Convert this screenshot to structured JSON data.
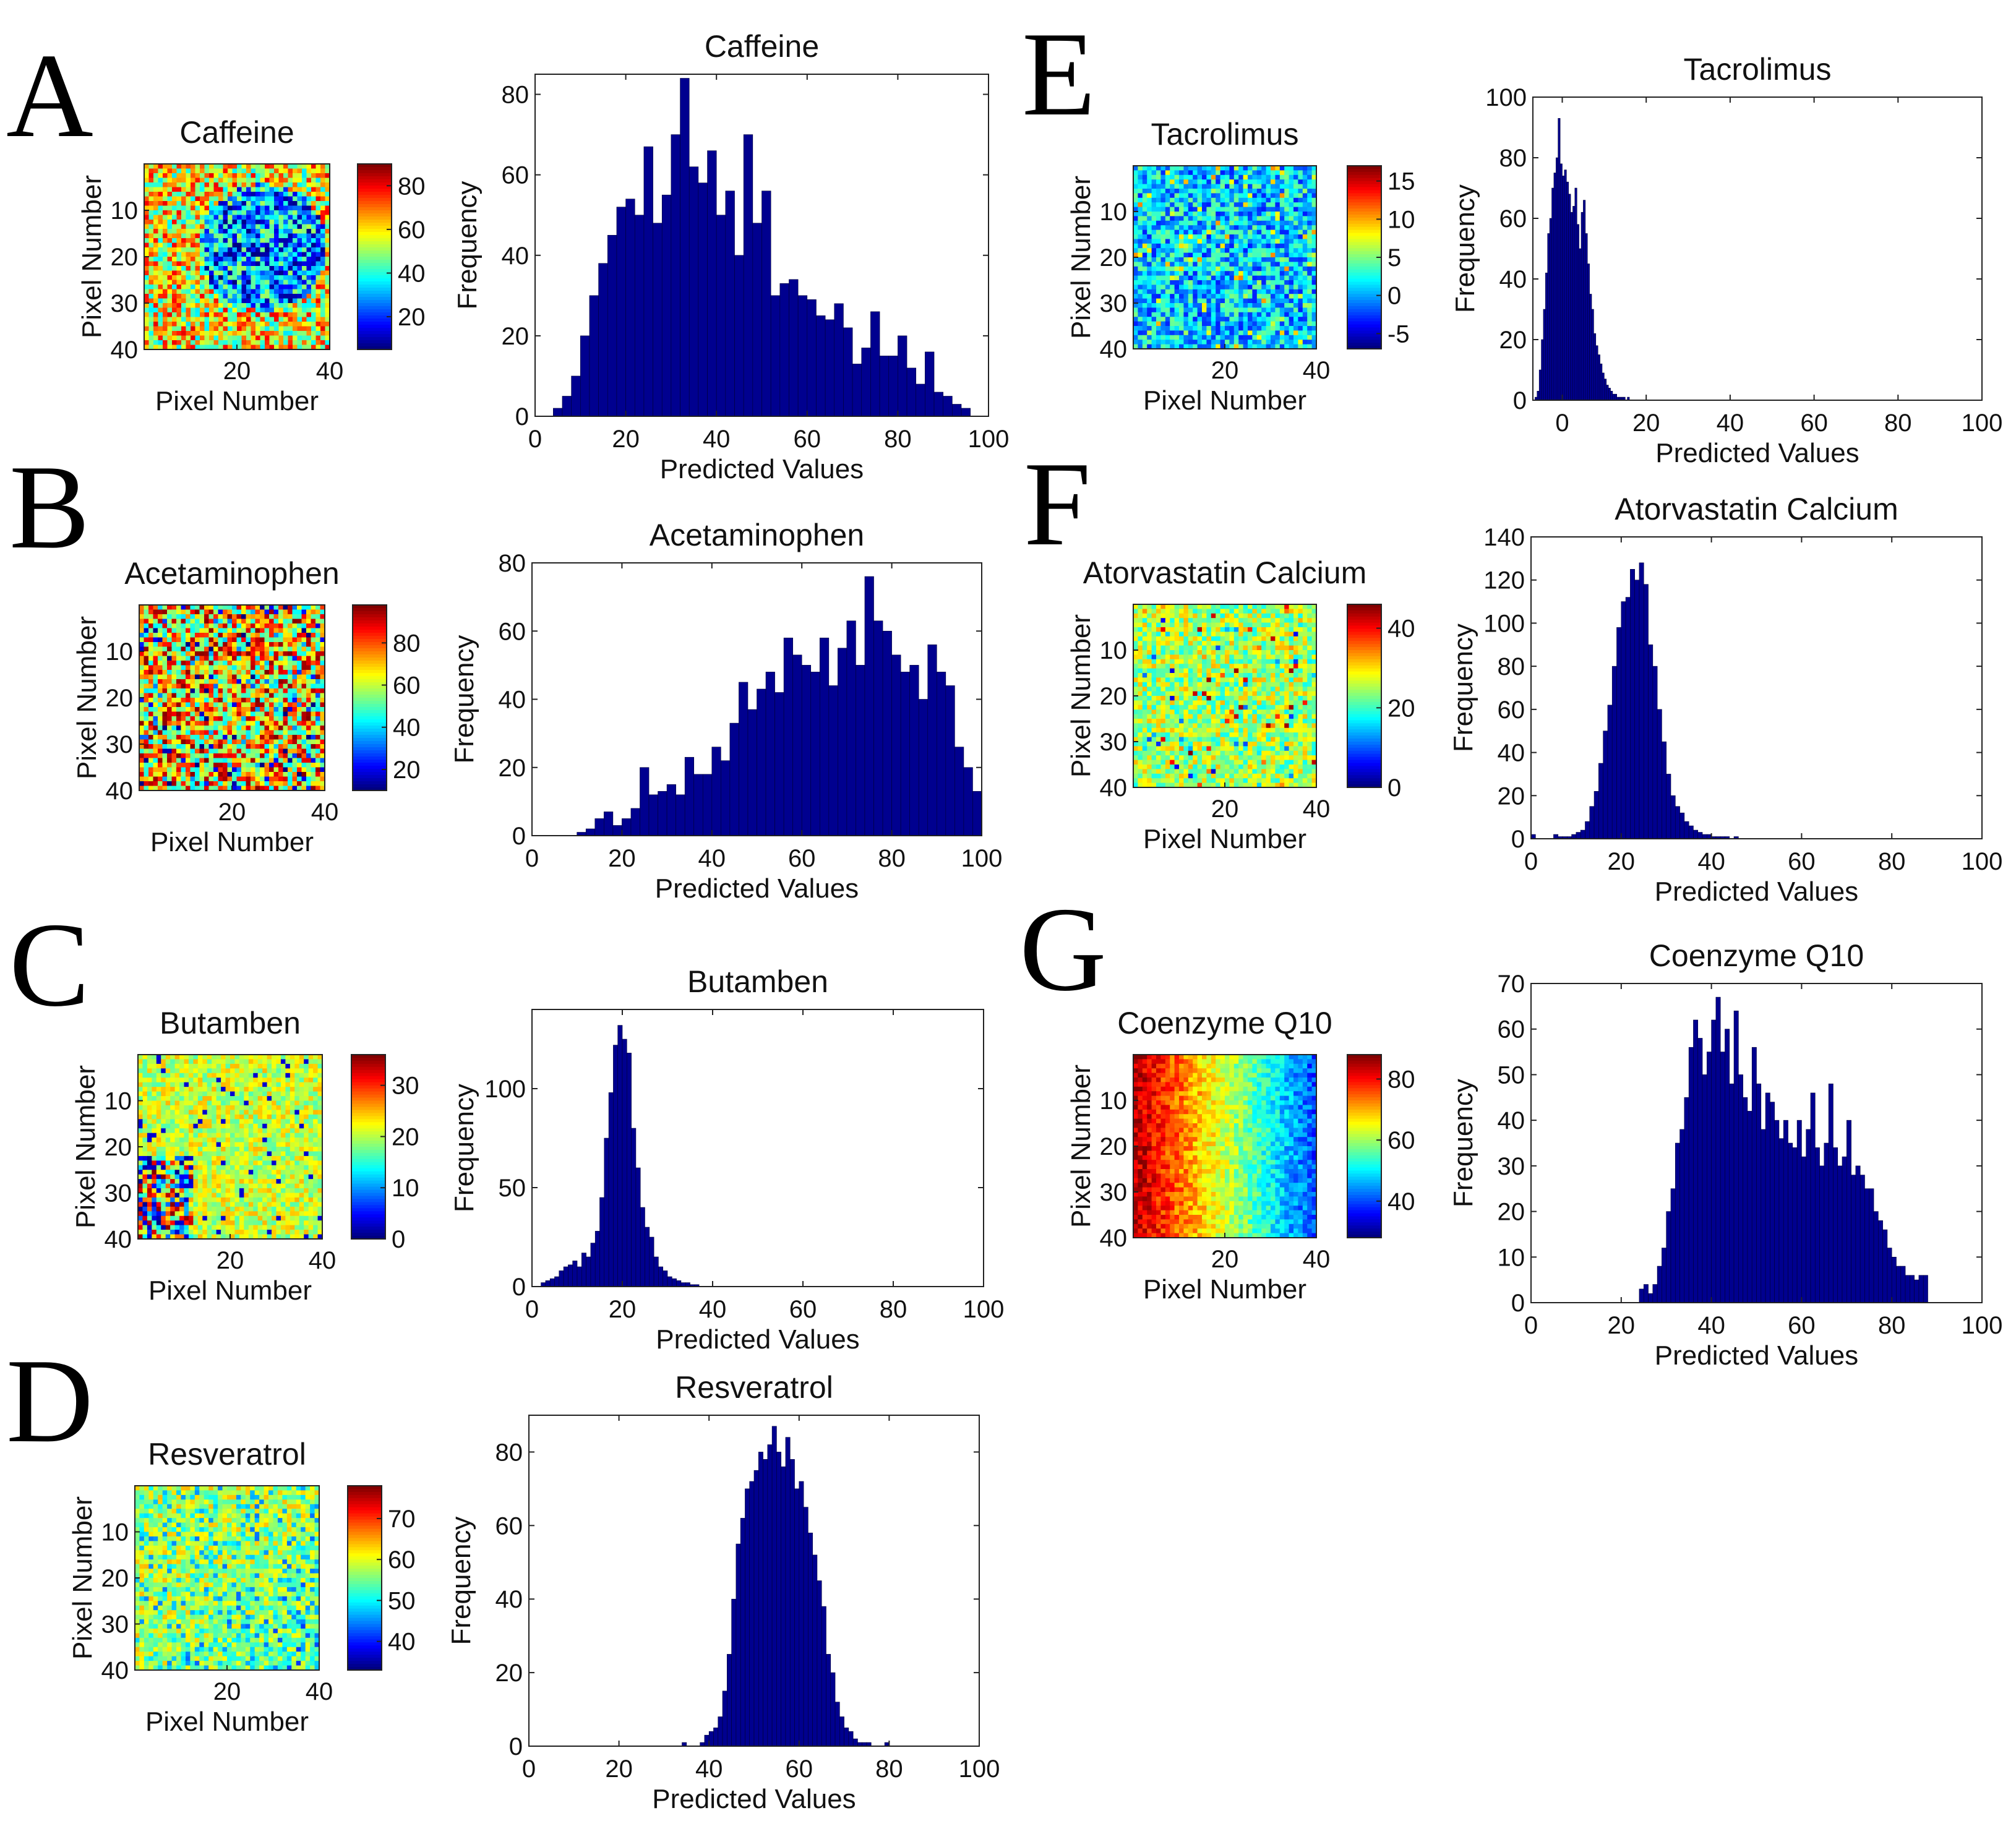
{
  "figure": {
    "panels": [
      {
        "letter": "A",
        "heatmap_title": "Caffeine",
        "hist_title": "Caffeine"
      },
      {
        "letter": "B",
        "heatmap_title": "Acetaminophen",
        "hist_title": "Acetaminophen"
      },
      {
        "letter": "C",
        "heatmap_title": "Butamben",
        "hist_title": "Butamben"
      },
      {
        "letter": "D",
        "heatmap_title": "Resveratrol",
        "hist_title": "Resveratrol"
      },
      {
        "letter": "E",
        "heatmap_title": "Tacrolimus",
        "hist_title": "Tacrolimus"
      },
      {
        "letter": "F",
        "heatmap_title": "Atorvastatin Calcium",
        "hist_title": "Atorvastatin Calcium"
      },
      {
        "letter": "G",
        "heatmap_title": "Coenzyme Q10",
        "hist_title": "Coenzyme Q10"
      }
    ]
  },
  "chart_data": [
    {
      "type": "heatmap",
      "panel": "A",
      "title": "Caffeine",
      "xlabel": "Pixel Number",
      "ylabel": "Pixel Number",
      "grid_size": 40,
      "xticks": [
        20,
        40
      ],
      "yticks": [
        10,
        20,
        30,
        40
      ],
      "colorbar": {
        "ticks": [
          20,
          40,
          60,
          80
        ],
        "range": [
          5,
          90
        ],
        "colormap": "jet"
      },
      "pattern": "random mix, lower values concentrated in right-center region"
    },
    {
      "type": "bar",
      "panel": "A",
      "title": "Caffeine",
      "xlabel": "Predicted Values",
      "ylabel": "Frequency",
      "xlim": [
        0,
        100
      ],
      "ylim": [
        0,
        85
      ],
      "xticks": [
        0,
        20,
        40,
        60,
        80,
        100
      ],
      "yticks": [
        0,
        20,
        40,
        60,
        80
      ],
      "bin_width": 2,
      "categories": [
        1,
        3,
        5,
        7,
        9,
        11,
        13,
        15,
        17,
        19,
        21,
        23,
        25,
        27,
        29,
        31,
        33,
        35,
        37,
        39,
        41,
        43,
        45,
        47,
        49,
        51,
        53,
        55,
        57,
        59,
        61,
        63,
        65,
        67,
        69,
        71,
        73,
        75,
        77,
        79,
        81,
        83,
        85,
        87,
        89,
        91,
        93,
        95,
        97,
        99
      ],
      "values": [
        0,
        0,
        2,
        5,
        10,
        20,
        30,
        38,
        45,
        52,
        54,
        50,
        67,
        48,
        55,
        70,
        84,
        62,
        58,
        66,
        50,
        56,
        40,
        70,
        48,
        56,
        30,
        33,
        34,
        30,
        29,
        25,
        24,
        28,
        22,
        13,
        17,
        26,
        15,
        15,
        20,
        12,
        8,
        16,
        6,
        5,
        3,
        2,
        0,
        0
      ]
    },
    {
      "type": "heatmap",
      "panel": "B",
      "title": "Acetaminophen",
      "xlabel": "Pixel Number",
      "ylabel": "Pixel Number",
      "grid_size": 40,
      "xticks": [
        20,
        40
      ],
      "yticks": [
        10,
        20,
        30,
        40
      ],
      "colorbar": {
        "ticks": [
          20,
          40,
          60,
          80
        ],
        "range": [
          10,
          98
        ],
        "colormap": "jet"
      },
      "pattern": "random mix dominated by high values"
    },
    {
      "type": "bar",
      "panel": "B",
      "title": "Acetaminophen",
      "xlabel": "Predicted Values",
      "ylabel": "Frequency",
      "xlim": [
        0,
        100
      ],
      "ylim": [
        0,
        80
      ],
      "xticks": [
        0,
        20,
        40,
        60,
        80,
        100
      ],
      "yticks": [
        0,
        20,
        40,
        60,
        80
      ],
      "bin_width": 2,
      "categories": [
        1,
        3,
        5,
        7,
        9,
        11,
        13,
        15,
        17,
        19,
        21,
        23,
        25,
        27,
        29,
        31,
        33,
        35,
        37,
        39,
        41,
        43,
        45,
        47,
        49,
        51,
        53,
        55,
        57,
        59,
        61,
        63,
        65,
        67,
        69,
        71,
        73,
        75,
        77,
        79,
        81,
        83,
        85,
        87,
        89,
        91,
        93,
        95,
        97,
        99
      ],
      "values": [
        0,
        0,
        0,
        0,
        0,
        1,
        2,
        5,
        7,
        3,
        5,
        8,
        20,
        12,
        13,
        15,
        12,
        23,
        18,
        18,
        26,
        22,
        33,
        45,
        37,
        43,
        48,
        42,
        58,
        53,
        50,
        48,
        58,
        44,
        55,
        63,
        50,
        76,
        63,
        60,
        53,
        48,
        50,
        40,
        56,
        48,
        44,
        26,
        20,
        13
      ]
    },
    {
      "type": "heatmap",
      "panel": "C",
      "title": "Butamben",
      "xlabel": "Pixel Number",
      "ylabel": "Pixel Number",
      "grid_size": 40,
      "xticks": [
        20,
        40
      ],
      "yticks": [
        10,
        20,
        30,
        40
      ],
      "colorbar": {
        "ticks": [
          0,
          10,
          20,
          30
        ],
        "range": [
          0,
          36
        ],
        "colormap": "jet"
      },
      "pattern": "mostly mid values, mixed cluster at bottom-left"
    },
    {
      "type": "bar",
      "panel": "C",
      "title": "Butamben",
      "xlabel": "Predicted Values",
      "ylabel": "Frequency",
      "xlim": [
        0,
        100
      ],
      "ylim": [
        0,
        140
      ],
      "xticks": [
        0,
        20,
        40,
        60,
        80,
        100
      ],
      "yticks": [
        0,
        50,
        100
      ],
      "bin_width": 1,
      "categories": [
        0.5,
        1.5,
        2.5,
        3.5,
        4.5,
        5.5,
        6.5,
        7.5,
        8.5,
        9.5,
        10.5,
        11.5,
        12.5,
        13.5,
        14.5,
        15.5,
        16.5,
        17.5,
        18.5,
        19.5,
        20.5,
        21.5,
        22.5,
        23.5,
        24.5,
        25.5,
        26.5,
        27.5,
        28.5,
        29.5,
        30.5,
        31.5,
        32.5,
        33.5,
        34.5,
        35.5,
        36.5,
        37.5,
        38.5,
        39.5
      ],
      "values": [
        0,
        0,
        2,
        3,
        4,
        5,
        8,
        10,
        11,
        13,
        10,
        17,
        15,
        22,
        28,
        45,
        75,
        98,
        122,
        132,
        125,
        118,
        80,
        60,
        40,
        30,
        25,
        15,
        10,
        8,
        5,
        4,
        3,
        2,
        2,
        1,
        1,
        0,
        0,
        0
      ]
    },
    {
      "type": "heatmap",
      "panel": "D",
      "title": "Resveratrol",
      "xlabel": "Pixel Number",
      "ylabel": "Pixel Number",
      "grid_size": 40,
      "xticks": [
        20,
        40
      ],
      "yticks": [
        10,
        20,
        30,
        40
      ],
      "colorbar": {
        "ticks": [
          40,
          50,
          60,
          70
        ],
        "range": [
          33,
          78
        ],
        "colormap": "jet"
      },
      "pattern": "yellow-green overall with blue speckles"
    },
    {
      "type": "bar",
      "panel": "D",
      "title": "Resveratrol",
      "xlabel": "Predicted Values",
      "ylabel": "Frequency",
      "xlim": [
        0,
        100
      ],
      "ylim": [
        0,
        90
      ],
      "xticks": [
        0,
        20,
        40,
        60,
        80,
        100
      ],
      "yticks": [
        0,
        20,
        40,
        60,
        80
      ],
      "bin_width": 1,
      "categories": [
        33.5,
        34.5,
        35.5,
        36.5,
        37.5,
        38.5,
        39.5,
        40.5,
        41.5,
        42.5,
        43.5,
        44.5,
        45.5,
        46.5,
        47.5,
        48.5,
        49.5,
        50.5,
        51.5,
        52.5,
        53.5,
        54.5,
        55.5,
        56.5,
        57.5,
        58.5,
        59.5,
        60.5,
        61.5,
        62.5,
        63.5,
        64.5,
        65.5,
        66.5,
        67.5,
        68.5,
        69.5,
        70.5,
        71.5,
        72.5,
        73.5,
        74.5,
        75.5,
        76.5,
        77.5,
        78.5,
        79.5,
        80.5
      ],
      "values": [
        0,
        1,
        0,
        0,
        0,
        1,
        3,
        4,
        5,
        8,
        15,
        25,
        40,
        55,
        62,
        70,
        72,
        75,
        80,
        78,
        82,
        87,
        80,
        76,
        84,
        78,
        70,
        72,
        65,
        58,
        52,
        45,
        38,
        25,
        20,
        12,
        8,
        5,
        4,
        2,
        1,
        1,
        1,
        0,
        0,
        0,
        1,
        0
      ]
    },
    {
      "type": "heatmap",
      "panel": "E",
      "title": "Tacrolimus",
      "xlabel": "Pixel Number",
      "ylabel": "Pixel Number",
      "grid_size": 40,
      "xticks": [
        20,
        40
      ],
      "yticks": [
        10,
        20,
        30,
        40
      ],
      "colorbar": {
        "ticks": [
          -5,
          0,
          5,
          10,
          15
        ],
        "range": [
          -7,
          17
        ],
        "colormap": "jet"
      },
      "pattern": "cyan/blue speckle field with sparse yellow"
    },
    {
      "type": "bar",
      "panel": "E",
      "title": "Tacrolimus",
      "xlabel": "Predicted Values",
      "ylabel": "Frequency",
      "xlim": [
        -7,
        100
      ],
      "ylim": [
        0,
        100
      ],
      "xticks": [
        0,
        20,
        40,
        60,
        80,
        100
      ],
      "yticks": [
        0,
        20,
        40,
        60,
        80,
        100
      ],
      "bin_width": 0.5,
      "categories": [
        -6.75,
        -6.25,
        -5.75,
        -5.25,
        -4.75,
        -4.25,
        -3.75,
        -3.25,
        -2.75,
        -2.25,
        -1.75,
        -1.25,
        -0.75,
        -0.25,
        0.25,
        0.75,
        1.25,
        1.75,
        2.25,
        2.75,
        3.25,
        3.75,
        4.25,
        4.75,
        5.25,
        5.75,
        6.25,
        6.75,
        7.25,
        7.75,
        8.25,
        8.75,
        9.25,
        9.75,
        10.25,
        10.75,
        11.25,
        11.75,
        12.25,
        12.75,
        13.25,
        13.75,
        14.25,
        14.75,
        15.25,
        15.75,
        16.25,
        16.75
      ],
      "values": [
        0,
        1,
        3,
        10,
        20,
        30,
        42,
        55,
        60,
        70,
        75,
        80,
        93,
        78,
        74,
        76,
        72,
        68,
        62,
        64,
        70,
        58,
        50,
        62,
        66,
        55,
        45,
        35,
        30,
        22,
        18,
        15,
        12,
        9,
        7,
        5,
        4,
        3,
        2,
        2,
        1,
        1,
        1,
        1,
        0,
        1,
        0,
        0
      ]
    },
    {
      "type": "heatmap",
      "panel": "F",
      "title": "Atorvastatin Calcium",
      "xlabel": "Pixel Number",
      "ylabel": "Pixel Number",
      "grid_size": 40,
      "xticks": [
        20,
        40
      ],
      "yticks": [
        10,
        20,
        30,
        40
      ],
      "colorbar": {
        "ticks": [
          0,
          20,
          40
        ],
        "range": [
          0,
          46
        ],
        "colormap": "jet"
      },
      "pattern": "green/yellow mix with sparse blue and red spots"
    },
    {
      "type": "bar",
      "panel": "F",
      "title": "Atorvastatin Calcium",
      "xlabel": "Predicted Values",
      "ylabel": "Frequency",
      "xlim": [
        0,
        100
      ],
      "ylim": [
        0,
        140
      ],
      "xticks": [
        0,
        20,
        40,
        60,
        80,
        100
      ],
      "yticks": [
        0,
        20,
        40,
        60,
        80,
        100,
        120,
        140
      ],
      "bin_width": 1,
      "categories": [
        0.5,
        1.5,
        2.5,
        3.5,
        4.5,
        5.5,
        6.5,
        7.5,
        8.5,
        9.5,
        10.5,
        11.5,
        12.5,
        13.5,
        14.5,
        15.5,
        16.5,
        17.5,
        18.5,
        19.5,
        20.5,
        21.5,
        22.5,
        23.5,
        24.5,
        25.5,
        26.5,
        27.5,
        28.5,
        29.5,
        30.5,
        31.5,
        32.5,
        33.5,
        34.5,
        35.5,
        36.5,
        37.5,
        38.5,
        39.5,
        40.5,
        41.5,
        42.5,
        43.5,
        44.5,
        45.5,
        46.5
      ],
      "values": [
        2,
        0,
        0,
        0,
        0,
        2,
        1,
        1,
        1,
        2,
        3,
        4,
        8,
        15,
        22,
        35,
        50,
        62,
        80,
        98,
        110,
        112,
        125,
        120,
        128,
        118,
        90,
        80,
        60,
        45,
        30,
        20,
        15,
        12,
        8,
        6,
        4,
        3,
        2,
        2,
        1,
        1,
        1,
        1,
        0,
        1,
        0
      ]
    },
    {
      "type": "heatmap",
      "panel": "G",
      "title": "Coenzyme Q10",
      "xlabel": "Pixel Number",
      "ylabel": "Pixel Number",
      "grid_size": 40,
      "xticks": [
        20,
        40
      ],
      "yticks": [
        10,
        20,
        30,
        40
      ],
      "colorbar": {
        "ticks": [
          40,
          60,
          80
        ],
        "range": [
          28,
          88
        ],
        "colormap": "jet"
      },
      "pattern": "left-to-right gradient from red/orange to blue"
    },
    {
      "type": "bar",
      "panel": "G",
      "title": "Coenzyme Q10",
      "xlabel": "Predicted Values",
      "ylabel": "Frequency",
      "xlim": [
        0,
        100
      ],
      "ylim": [
        0,
        70
      ],
      "xticks": [
        0,
        20,
        40,
        60,
        80,
        100
      ],
      "yticks": [
        0,
        10,
        20,
        30,
        40,
        50,
        60,
        70
      ],
      "bin_width": 1,
      "categories": [
        24.5,
        25.5,
        26.5,
        27.5,
        28.5,
        29.5,
        30.5,
        31.5,
        32.5,
        33.5,
        34.5,
        35.5,
        36.5,
        37.5,
        38.5,
        39.5,
        40.5,
        41.5,
        42.5,
        43.5,
        44.5,
        45.5,
        46.5,
        47.5,
        48.5,
        49.5,
        50.5,
        51.5,
        52.5,
        53.5,
        54.5,
        55.5,
        56.5,
        57.5,
        58.5,
        59.5,
        60.5,
        61.5,
        62.5,
        63.5,
        64.5,
        65.5,
        66.5,
        67.5,
        68.5,
        69.5,
        70.5,
        71.5,
        72.5,
        73.5,
        74.5,
        75.5,
        76.5,
        77.5,
        78.5,
        79.5,
        80.5,
        81.5,
        82.5,
        83.5,
        84.5,
        85.5,
        86.5,
        87.5
      ],
      "values": [
        3,
        4,
        2,
        4,
        8,
        12,
        20,
        25,
        35,
        38,
        45,
        56,
        62,
        58,
        50,
        55,
        62,
        67,
        55,
        60,
        48,
        64,
        50,
        45,
        42,
        56,
        48,
        38,
        46,
        44,
        40,
        36,
        40,
        35,
        34,
        40,
        32,
        38,
        46,
        34,
        30,
        35,
        48,
        34,
        30,
        32,
        40,
        28,
        30,
        28,
        25,
        25,
        20,
        18,
        16,
        12,
        10,
        8,
        8,
        6,
        6,
        5,
        6,
        6
      ]
    }
  ]
}
